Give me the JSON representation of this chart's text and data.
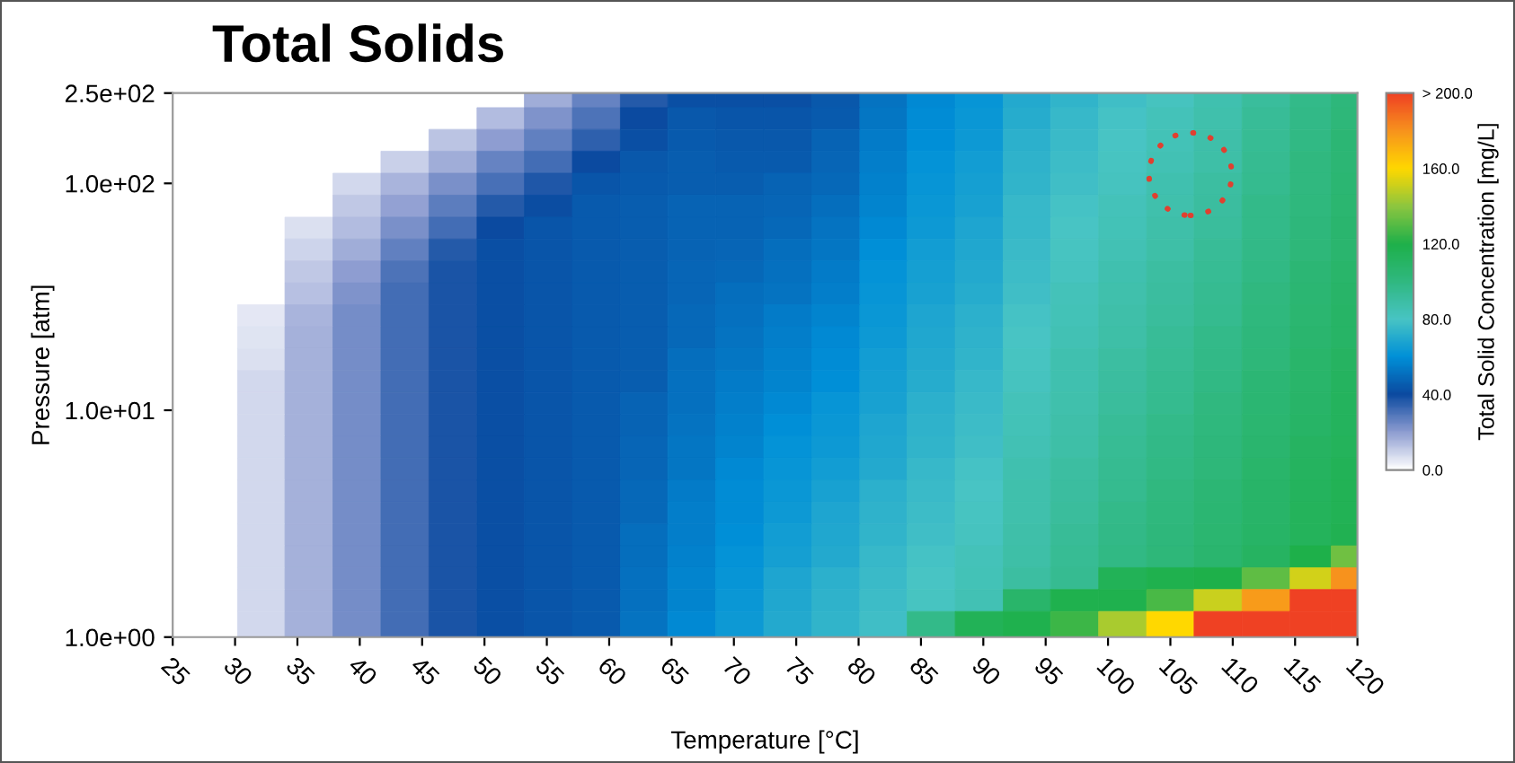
{
  "chart_data": {
    "type": "heatmap",
    "title": "Total Solids",
    "xlabel": "Temperature [°C]",
    "ylabel": "Pressure [atm]",
    "clabel": "Total Solid Concentration [mg/L]",
    "x": [
      32.1,
      35.9,
      39.8,
      43.6,
      47.5,
      51.3,
      55.1,
      59.0,
      62.8,
      66.6,
      70.5,
      74.3,
      78.2,
      82.0,
      85.8,
      89.7,
      93.5,
      97.3,
      101.2,
      105.0,
      108.8,
      112.7,
      116.5,
      119.3
    ],
    "y": [
      241,
      193,
      155,
      124,
      99.1,
      79.3,
      63.5,
      50.9,
      40.7,
      32.6,
      26.1,
      20.9,
      16.7,
      13.4,
      10.7,
      8.58,
      6.87,
      5.5,
      4.4,
      3.52,
      2.82,
      2.26,
      1.81,
      1.45,
      1.16
    ],
    "log": "y",
    "grid": false,
    "xlim": [
      25,
      120
    ],
    "xticks": [
      25,
      30,
      35,
      40,
      45,
      50,
      55,
      60,
      65,
      70,
      75,
      80,
      85,
      90,
      95,
      100,
      105,
      110,
      115,
      120
    ],
    "ylim": [
      1,
      250
    ],
    "yticks": [
      {
        "value": 1,
        "label": "1.0e+00"
      },
      {
        "value": 10,
        "label": "1.0e+01"
      },
      {
        "value": 100,
        "label": "1.0e+02"
      },
      {
        "value": 250,
        "label": "2.5e+02"
      }
    ],
    "clim": [
      0,
      200
    ],
    "cticks": [
      {
        "value": 0,
        "label": "0.0"
      },
      {
        "value": 40,
        "label": "40.0"
      },
      {
        "value": 80,
        "label": "80.0"
      },
      {
        "value": 120,
        "label": "120.0"
      },
      {
        "value": 160,
        "label": "160.0"
      },
      {
        "value": 200,
        "label": "> 200.0"
      }
    ],
    "colors": [
      "#ffffff",
      "#8c9bd0",
      "#0b4aa0",
      "#0090d8",
      "#48c4c4",
      "#30b880",
      "#1eb04a",
      "#8cc63f",
      "#ffd800",
      "#f7941d",
      "#ef4123"
    ],
    "cells": [
      [
        null,
        null,
        null,
        null,
        null,
        null,
        17,
        26,
        36,
        42,
        42,
        42,
        44,
        52,
        58,
        62,
        70,
        74,
        78,
        82,
        86,
        92,
        97,
        102
      ],
      [
        null,
        null,
        null,
        null,
        null,
        14,
        22,
        30,
        40,
        44,
        43,
        43,
        45,
        53,
        59,
        63,
        71,
        75,
        79,
        83,
        87,
        93,
        98,
        103
      ],
      [
        null,
        null,
        null,
        null,
        12,
        20,
        27,
        35,
        42,
        45,
        44,
        44,
        47,
        54,
        60,
        64,
        72,
        76,
        80,
        84,
        88,
        94,
        99,
        104
      ],
      [
        null,
        null,
        null,
        10,
        17,
        26,
        32,
        40,
        44,
        46,
        45,
        45,
        48,
        55,
        61,
        65,
        73,
        77,
        81,
        85,
        89,
        95,
        100,
        104
      ],
      [
        null,
        null,
        8,
        15,
        23,
        31,
        37,
        43,
        45,
        46,
        46,
        47,
        49,
        56,
        62,
        66,
        74,
        78,
        82,
        86,
        90,
        96,
        100,
        105
      ],
      [
        null,
        null,
        11,
        19,
        28,
        36,
        41,
        45,
        46,
        47,
        47,
        48,
        50,
        57,
        63,
        67,
        75,
        79,
        83,
        87,
        91,
        97,
        101,
        106
      ],
      [
        null,
        7,
        14,
        23,
        32,
        40,
        43,
        45,
        46,
        47,
        47,
        49,
        52,
        58,
        64,
        68,
        75,
        80,
        84,
        88,
        92,
        97,
        102,
        107
      ],
      [
        null,
        9,
        17,
        27,
        36,
        42,
        43,
        45,
        46,
        47,
        48,
        50,
        53,
        60,
        65,
        69,
        76,
        81,
        85,
        89,
        93,
        98,
        103,
        107
      ],
      [
        null,
        11,
        20,
        30,
        38,
        42,
        43,
        45,
        46,
        48,
        49,
        51,
        54,
        61,
        66,
        70,
        77,
        82,
        86,
        90,
        94,
        99,
        104,
        108
      ],
      [
        null,
        13,
        22,
        32,
        38,
        42,
        43,
        45,
        46,
        48,
        50,
        52,
        55,
        62,
        67,
        71,
        78,
        83,
        87,
        91,
        95,
        100,
        105,
        109
      ],
      [
        5,
        15,
        24,
        32,
        38,
        42,
        43,
        45,
        46,
        49,
        51,
        54,
        57,
        63,
        68,
        72,
        79,
        84,
        88,
        92,
        96,
        101,
        106,
        110
      ],
      [
        6,
        16,
        24,
        32,
        38,
        42,
        43,
        45,
        46,
        49,
        52,
        55,
        58,
        64,
        69,
        73,
        80,
        85,
        89,
        93,
        97,
        102,
        107,
        110
      ],
      [
        7,
        16,
        24,
        32,
        38,
        42,
        43,
        45,
        46,
        50,
        53,
        56,
        59,
        65,
        70,
        74,
        81,
        86,
        90,
        94,
        98,
        103,
        108,
        111
      ],
      [
        8,
        16,
        24,
        32,
        38,
        42,
        43,
        45,
        46,
        51,
        54,
        57,
        60,
        66,
        71,
        75,
        82,
        86,
        91,
        95,
        99,
        104,
        108,
        112
      ],
      [
        8,
        16,
        24,
        32,
        38,
        42,
        43,
        45,
        47,
        51,
        55,
        58,
        62,
        67,
        72,
        76,
        83,
        87,
        92,
        96,
        100,
        105,
        109,
        113
      ],
      [
        8,
        16,
        24,
        32,
        38,
        42,
        43,
        45,
        47,
        52,
        56,
        60,
        63,
        68,
        73,
        77,
        84,
        88,
        93,
        97,
        101,
        106,
        110,
        113
      ],
      [
        8,
        16,
        24,
        32,
        38,
        42,
        43,
        45,
        48,
        53,
        57,
        61,
        64,
        69,
        74,
        78,
        85,
        89,
        94,
        98,
        102,
        107,
        111,
        114
      ],
      [
        8,
        16,
        24,
        32,
        38,
        42,
        43,
        45,
        48,
        53,
        58,
        62,
        65,
        70,
        75,
        79,
        86,
        90,
        95,
        99,
        103,
        108,
        112,
        115
      ],
      [
        8,
        16,
        24,
        32,
        38,
        42,
        43,
        45,
        49,
        54,
        59,
        63,
        67,
        72,
        76,
        80,
        87,
        91,
        96,
        100,
        104,
        109,
        113,
        116
      ],
      [
        8,
        16,
        24,
        32,
        38,
        42,
        43,
        45,
        49,
        55,
        59,
        64,
        68,
        73,
        77,
        81,
        87,
        92,
        97,
        101,
        105,
        109,
        114,
        116
      ],
      [
        8,
        16,
        24,
        32,
        38,
        42,
        43,
        45,
        50,
        55,
        60,
        65,
        69,
        74,
        78,
        82,
        88,
        93,
        98,
        102,
        106,
        110,
        114,
        117
      ],
      [
        8,
        16,
        24,
        32,
        38,
        42,
        43,
        45,
        50,
        56,
        61,
        66,
        70,
        75,
        79,
        83,
        89,
        94,
        99,
        103,
        107,
        111,
        120,
        135
      ],
      [
        8,
        16,
        24,
        32,
        38,
        42,
        43,
        45,
        51,
        57,
        62,
        68,
        72,
        76,
        80,
        84,
        90,
        95,
        115,
        118,
        120,
        132,
        152,
        180
      ],
      [
        8,
        16,
        24,
        32,
        38,
        42,
        43,
        45,
        51,
        57,
        63,
        69,
        73,
        77,
        81,
        85,
        108,
        118,
        118,
        128,
        150,
        178,
        200,
        200
      ],
      [
        8,
        16,
        24,
        32,
        38,
        42,
        43,
        45,
        52,
        58,
        64,
        70,
        74,
        78,
        97,
        115,
        118,
        125,
        145,
        160,
        200,
        200,
        200,
        200
      ]
    ]
  }
}
